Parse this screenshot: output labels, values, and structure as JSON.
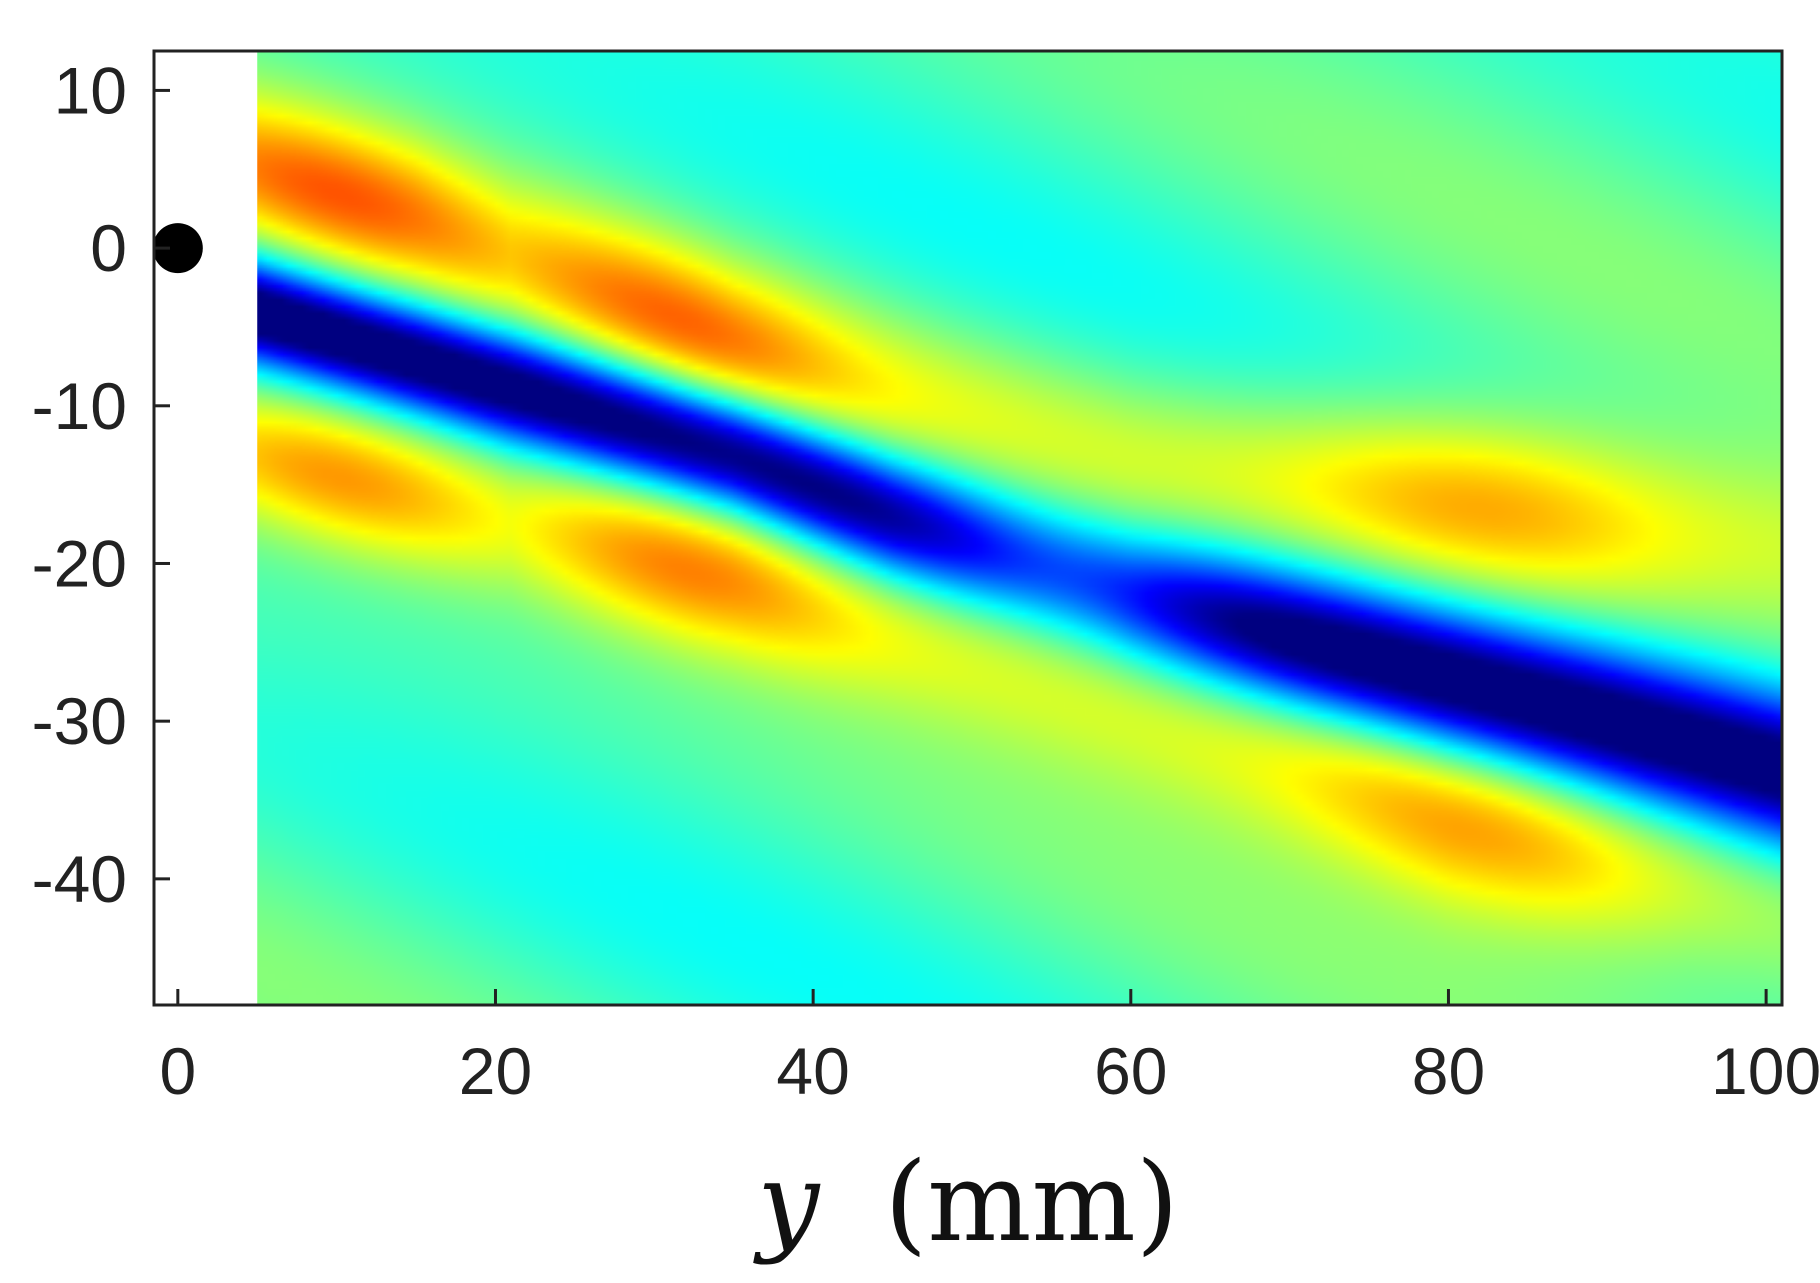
{
  "chart_data": {
    "type": "heatmap",
    "title": "",
    "xlabel_var": "y",
    "xlabel_unit": "(mm)",
    "ylabel": "",
    "xlim": [
      -1.5,
      101
    ],
    "ylim": [
      -48,
      12.5
    ],
    "x_ticks": [
      0,
      20,
      40,
      60,
      80,
      100
    ],
    "y_ticks": [
      10,
      0,
      -10,
      -20,
      -30,
      -40
    ],
    "x_tick_labels": [
      "0",
      "20",
      "40",
      "60",
      "80",
      "100"
    ],
    "y_tick_labels": [
      "10",
      "0",
      "-10",
      "-20",
      "-30",
      "-40"
    ],
    "field_x_range": [
      5,
      101
    ],
    "colormap": "jet",
    "marker": {
      "x": 0,
      "y": 0,
      "color": "#000000"
    },
    "features": [
      {
        "kind": "trough",
        "path": [
          [
            5,
            -4
          ],
          [
            25,
            -10
          ],
          [
            35,
            -13
          ],
          [
            45,
            -17
          ],
          [
            60,
            -22
          ],
          [
            75,
            -26
          ],
          [
            90,
            -30
          ],
          [
            101,
            -33
          ]
        ],
        "amplitude": -1.0
      },
      {
        "kind": "crest",
        "path": [
          [
            5,
            5
          ],
          [
            15,
            2
          ],
          [
            25,
            -2
          ],
          [
            35,
            -6
          ],
          [
            45,
            -9
          ],
          [
            60,
            -13
          ],
          [
            80,
            -16
          ],
          [
            101,
            -19
          ]
        ],
        "amplitude": 0.55
      },
      {
        "kind": "crest",
        "path": [
          [
            5,
            -13
          ],
          [
            20,
            -17
          ],
          [
            35,
            -21
          ],
          [
            50,
            -26
          ],
          [
            65,
            -31
          ],
          [
            80,
            -36
          ],
          [
            95,
            -40
          ],
          [
            101,
            -42
          ]
        ],
        "amplitude": 0.6
      }
    ]
  }
}
